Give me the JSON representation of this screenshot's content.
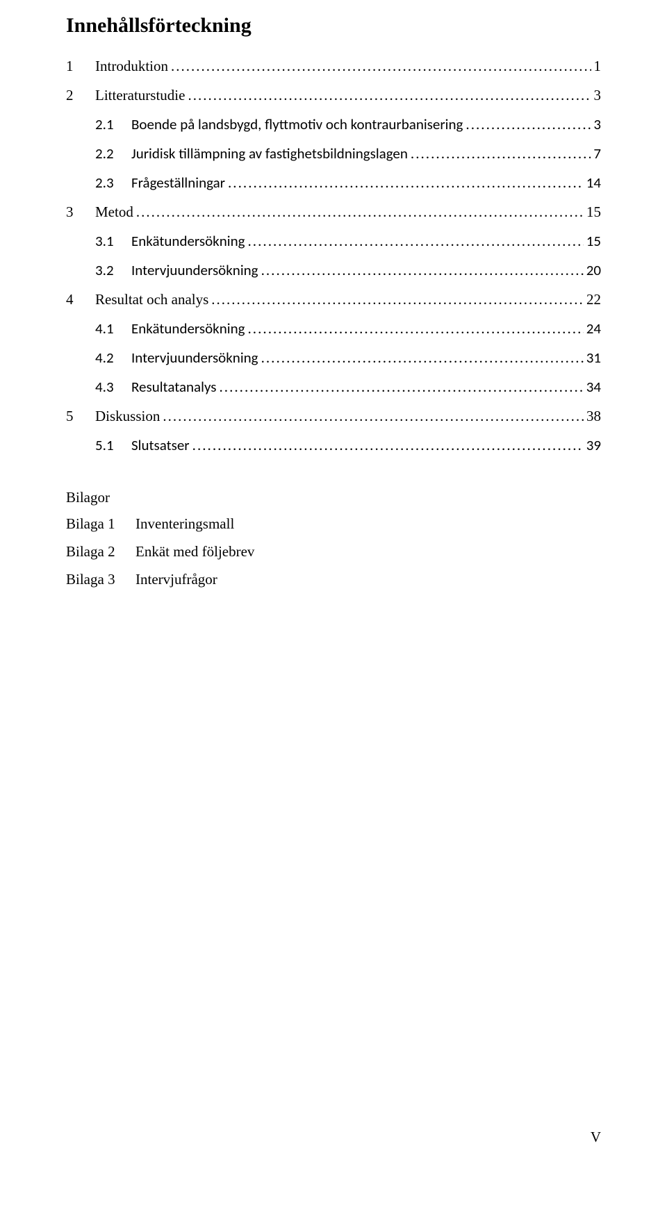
{
  "title": "Innehållsförteckning",
  "toc": [
    {
      "level": 1,
      "font": "times",
      "num": "1",
      "label": "Introduktion",
      "page": "1"
    },
    {
      "level": 1,
      "font": "times",
      "num": "2",
      "label": "Litteraturstudie",
      "page": "3"
    },
    {
      "level": 2,
      "font": "calibri",
      "num": "2.1",
      "label": "Boende på landsbygd, flyttmotiv och kontraurbanisering",
      "page": "3"
    },
    {
      "level": 2,
      "font": "calibri",
      "num": "2.2",
      "label": "Juridisk tillämpning av fastighetsbildningslagen",
      "page": "7"
    },
    {
      "level": 2,
      "font": "calibri",
      "num": "2.3",
      "label": "Frågeställningar",
      "page": "14"
    },
    {
      "level": 1,
      "font": "times",
      "num": "3",
      "label": "Metod",
      "page": "15"
    },
    {
      "level": 2,
      "font": "calibri",
      "num": "3.1",
      "label": "Enkätundersökning",
      "page": "15"
    },
    {
      "level": 2,
      "font": "calibri",
      "num": "3.2",
      "label": "Intervjuundersökning",
      "page": "20"
    },
    {
      "level": 1,
      "font": "times",
      "num": "4",
      "label": "Resultat och analys",
      "page": "22"
    },
    {
      "level": 2,
      "font": "calibri",
      "num": "4.1",
      "label": "Enkätundersökning",
      "page": "24"
    },
    {
      "level": 2,
      "font": "calibri",
      "num": "4.2",
      "label": "Intervjuundersökning",
      "page": "31"
    },
    {
      "level": 2,
      "font": "calibri",
      "num": "4.3",
      "label": "Resultatanalys",
      "page": "34"
    },
    {
      "level": 1,
      "font": "times",
      "num": "5",
      "label": "Diskussion",
      "page": "38"
    },
    {
      "level": 2,
      "font": "calibri",
      "num": "5.1",
      "label": "Slutsatser",
      "page": "39"
    }
  ],
  "bilagor": {
    "heading": "Bilagor",
    "items": [
      {
        "num": "Bilaga 1",
        "label": "Inventeringsmall"
      },
      {
        "num": "Bilaga 2",
        "label": "Enkät med följebrev"
      },
      {
        "num": "Bilaga 3",
        "label": "Intervjufrågor"
      }
    ]
  },
  "footer_page": "V"
}
